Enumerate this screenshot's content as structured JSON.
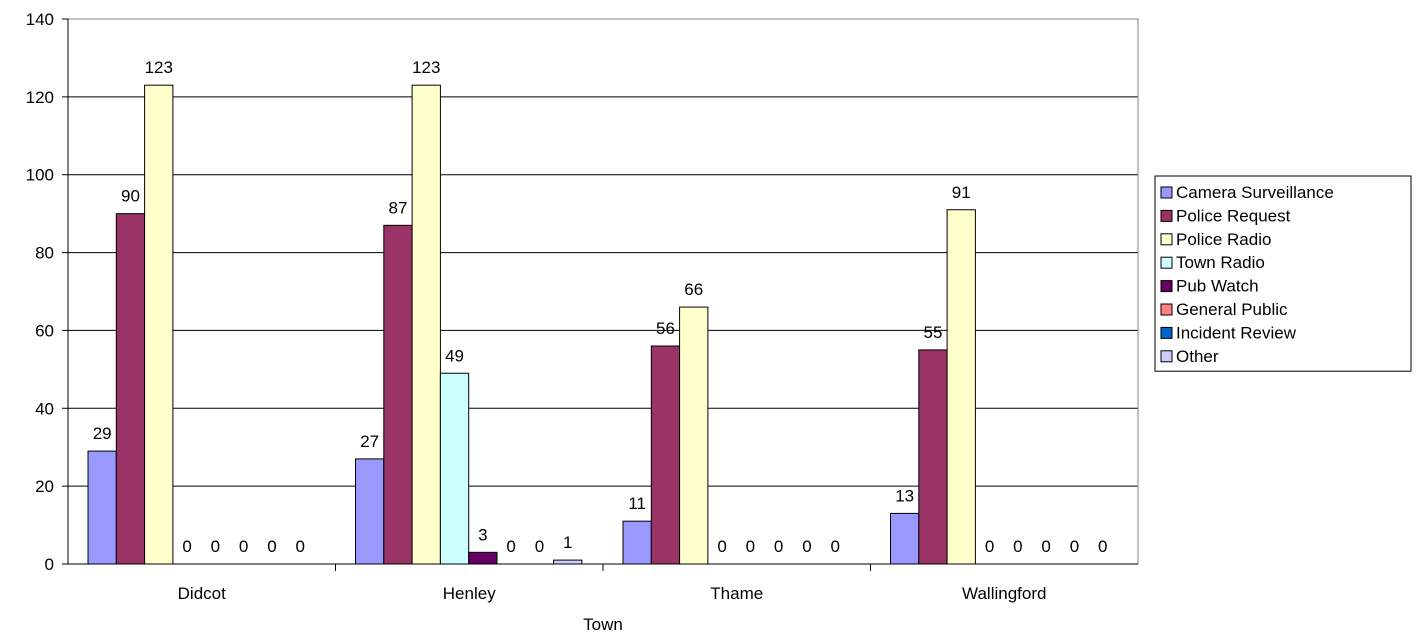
{
  "chart_data": {
    "type": "bar",
    "xlabel": "Town",
    "ylabel": "",
    "ylim": [
      0,
      140
    ],
    "yticks": [
      0,
      20,
      40,
      60,
      80,
      100,
      120,
      140
    ],
    "grid": true,
    "legend_position": "right",
    "categories": [
      "Didcot",
      "Henley",
      "Thame",
      "Wallingford"
    ],
    "series": [
      {
        "name": "Camera Surveillance",
        "color": "#9999ff",
        "values": [
          29,
          27,
          11,
          13
        ]
      },
      {
        "name": "Police Request",
        "color": "#993366",
        "values": [
          90,
          87,
          56,
          55
        ]
      },
      {
        "name": "Police Radio",
        "color": "#ffffcc",
        "values": [
          123,
          123,
          66,
          91
        ]
      },
      {
        "name": "Town Radio",
        "color": "#ccffff",
        "values": [
          0,
          49,
          0,
          0
        ]
      },
      {
        "name": "Pub Watch",
        "color": "#660066",
        "values": [
          0,
          3,
          0,
          0
        ]
      },
      {
        "name": "General Public",
        "color": "#ff8080",
        "values": [
          0,
          0,
          0,
          0
        ]
      },
      {
        "name": "Incident Review",
        "color": "#0066cc",
        "values": [
          0,
          0,
          0,
          0
        ]
      },
      {
        "name": "Other",
        "color": "#ccccff",
        "values": [
          0,
          1,
          0,
          0
        ]
      }
    ]
  }
}
